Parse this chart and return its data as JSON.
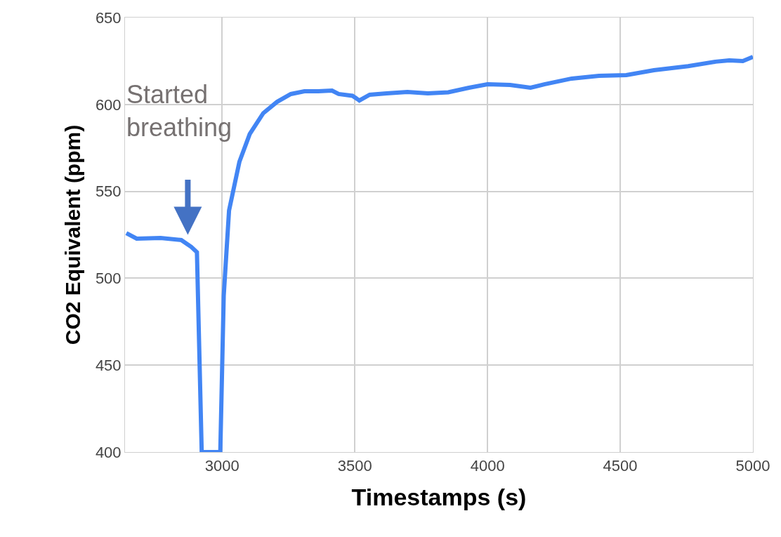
{
  "chart_data": {
    "type": "line",
    "xlabel": "Timestamps (s)",
    "ylabel": "CO2 Equivalent (ppm)",
    "x": [
      2639,
      2678,
      2768,
      2846,
      2884,
      2905,
      2923,
      2993,
      3006,
      3026,
      3065,
      3104,
      3155,
      3207,
      3259,
      3310,
      3362,
      3414,
      3439,
      3491,
      3517,
      3556,
      3620,
      3698,
      3775,
      3852,
      3930,
      4000,
      4085,
      4162,
      4214,
      4317,
      4420,
      4523,
      4627,
      4756,
      4859,
      4911,
      4962,
      5000
    ],
    "series": [
      {
        "color": "#4285f4",
        "values": [
          526,
          522.8,
          523.2,
          522,
          518,
          515,
          400,
          400,
          490,
          539,
          567,
          583,
          595,
          601.5,
          606,
          607.6,
          607.6,
          608,
          606,
          605,
          602.3,
          605.6,
          606.4,
          607.2,
          606.4,
          607,
          609.6,
          611.6,
          611.2,
          609.6,
          611.6,
          614.9,
          616.5,
          616.9,
          619.7,
          622,
          624.6,
          625.4,
          625,
          627.4
        ]
      }
    ],
    "xlim": [
      2634,
      5000
    ],
    "xticks": [
      3000,
      3500,
      4000,
      4500,
      5000
    ],
    "ylim": [
      400,
      650
    ],
    "yticks": [
      400,
      450,
      500,
      550,
      600,
      650
    ],
    "grid": true,
    "line_style": "solid",
    "annotations": [
      "Started breathing"
    ]
  }
}
